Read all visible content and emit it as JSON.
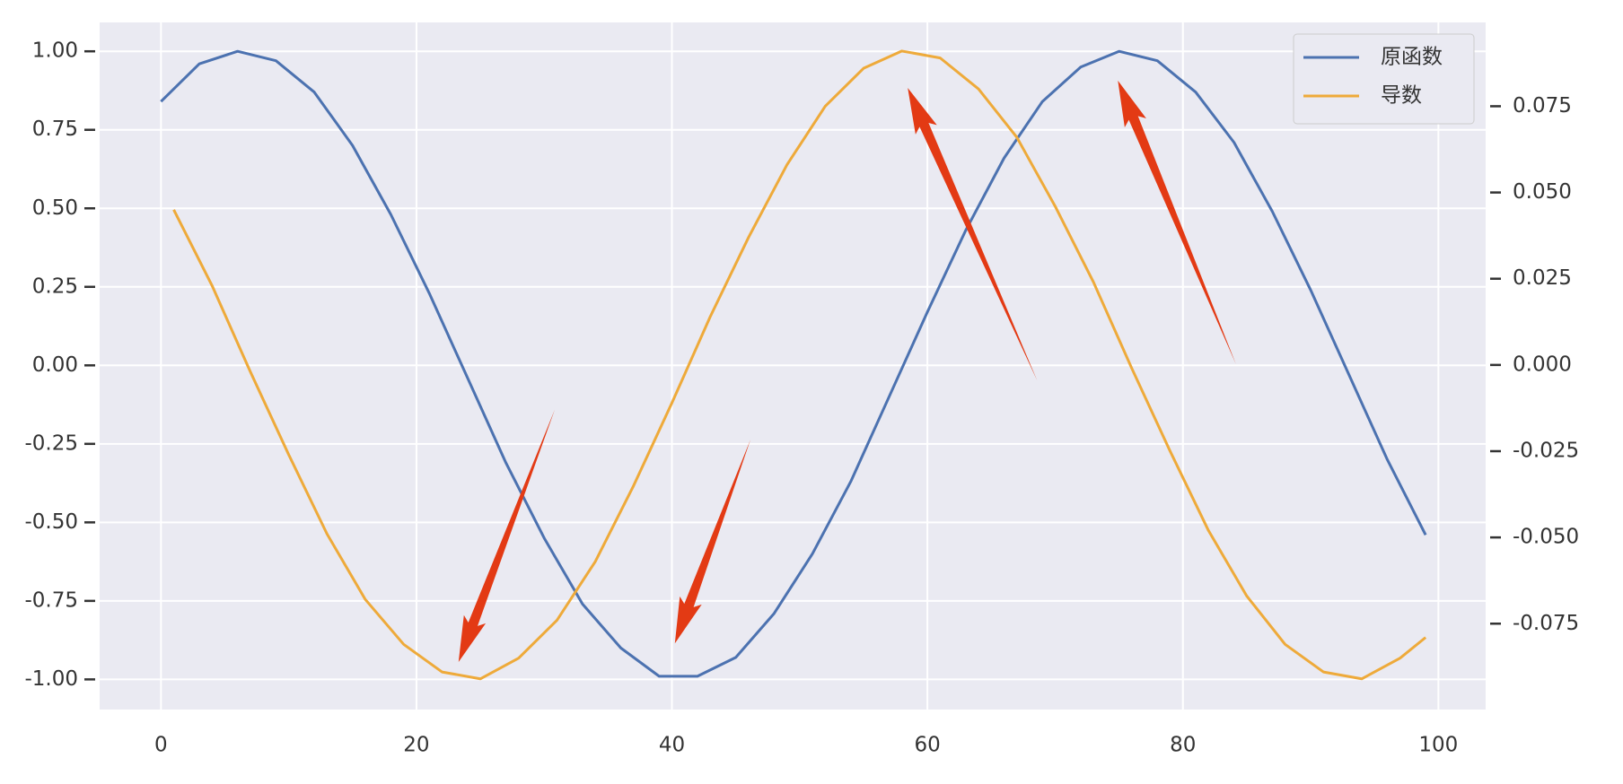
{
  "chart_data": {
    "type": "line",
    "xlim": [
      -4.8,
      103.7
    ],
    "xticks": [
      0,
      20,
      40,
      60,
      80,
      100
    ],
    "ylim": [
      -1.096,
      1.092
    ],
    "yticks": [
      {
        "value": 1,
        "label": "1.00"
      },
      0.75,
      {
        "value": 0.5,
        "label": "0.50"
      },
      0.25,
      {
        "value": 0,
        "label": "0.00"
      },
      -0.25,
      {
        "value": -0.5,
        "label": "-0.50"
      },
      -0.75,
      {
        "value": -1,
        "label": "-1.00"
      }
    ],
    "y2lim": [
      -0.0999,
      0.0993
    ],
    "y2ticks": [
      0.075,
      {
        "value": 0.05,
        "label": "0.050"
      },
      0.025,
      {
        "value": 0,
        "label": "0.000"
      },
      -0.025,
      {
        "value": -0.05,
        "label": "-0.050"
      },
      -0.075
    ],
    "grid": true,
    "legend": "upper right",
    "series": [
      {
        "name": "原函数",
        "color": "#4c72b0",
        "x": [
          0,
          3,
          6,
          9,
          12,
          15,
          18,
          21,
          24,
          27,
          30,
          33,
          36,
          39,
          42,
          45,
          48,
          51,
          54,
          57,
          60,
          63,
          66,
          69,
          72,
          75,
          78,
          81,
          84,
          87,
          90,
          93,
          96,
          99
        ],
        "values": [
          0.84,
          0.96,
          1.0,
          0.97,
          0.87,
          0.7,
          0.48,
          0.23,
          -0.04,
          -0.31,
          -0.55,
          -0.76,
          -0.9,
          -0.99,
          -0.99,
          -0.93,
          -0.79,
          -0.6,
          -0.37,
          -0.1,
          0.17,
          0.43,
          0.66,
          0.84,
          0.95,
          1.0,
          0.97,
          0.87,
          0.71,
          0.49,
          0.24,
          -0.03,
          -0.3,
          -0.54
        ]
      },
      {
        "name": "导数",
        "color": "#eeaa3a",
        "axis": "y2",
        "x": [
          1,
          4,
          7,
          10,
          13,
          16,
          19,
          22,
          25,
          28,
          31,
          34,
          37,
          40,
          43,
          46,
          49,
          52,
          55,
          58,
          61,
          64,
          67,
          70,
          73,
          76,
          79,
          82,
          85,
          88,
          91,
          94,
          97,
          99
        ],
        "values": [
          0.045,
          0.023,
          -0.002,
          -0.026,
          -0.049,
          -0.068,
          -0.081,
          -0.089,
          -0.091,
          -0.085,
          -0.074,
          -0.057,
          -0.035,
          -0.011,
          0.014,
          0.037,
          0.058,
          0.075,
          0.086,
          0.091,
          0.089,
          0.08,
          0.066,
          0.046,
          0.024,
          -0.001,
          -0.025,
          -0.048,
          -0.067,
          -0.081,
          -0.089,
          -0.091,
          -0.085,
          -0.079
        ]
      }
    ]
  }
}
